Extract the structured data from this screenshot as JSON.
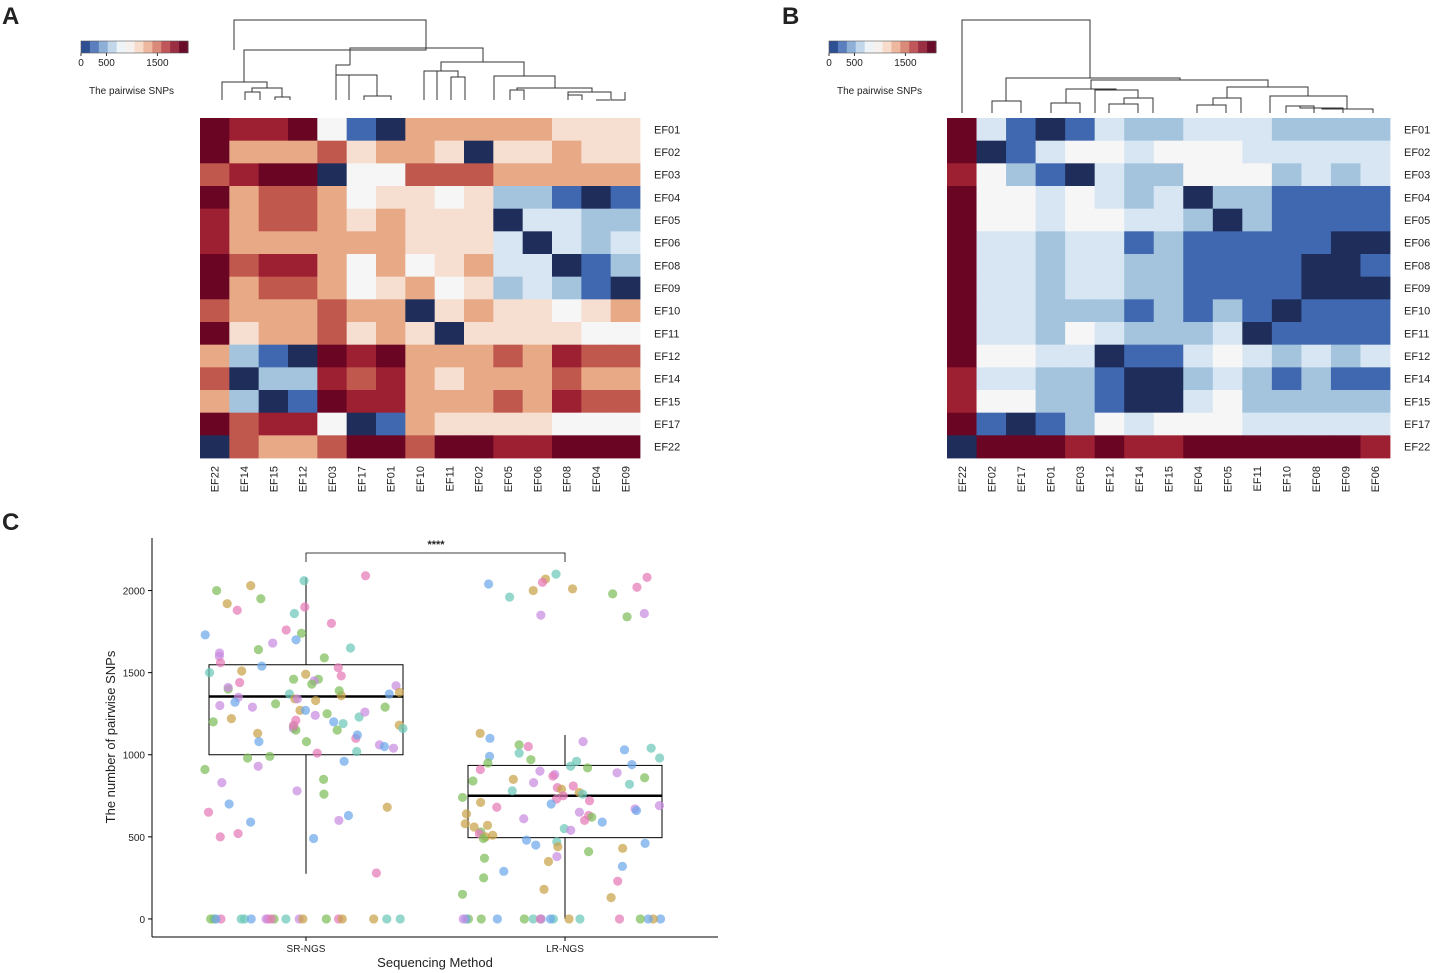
{
  "panels": {
    "a": "A",
    "b": "B",
    "c": "C"
  },
  "colorbar": {
    "title": "The pairwise SNPs",
    "ticks": [
      0,
      500,
      1500
    ],
    "range": [
      0,
      2100
    ],
    "colors": [
      "#2f4f93",
      "#5b7fbe",
      "#8fb0d6",
      "#c2d7ea",
      "#eef3f8",
      "#f6f1ee",
      "#f7dccc",
      "#eeb8a0",
      "#d98a78",
      "#c0575b",
      "#9a2f43",
      "#6b0d2a"
    ]
  },
  "colors": {
    "v0": "#1f2d5a",
    "v1": "#4068b0",
    "v2": "#a4c4de",
    "v3": "#d7e6f2",
    "v4": "#f6f6f6",
    "v5": "#f6dfd0",
    "v6": "#e8a987",
    "v7": "#c0584e",
    "v8": "#9d2032",
    "v9": "#6b0524"
  },
  "chart_data": [
    {
      "type": "heatmap",
      "panel": "A",
      "title": "",
      "columns": [
        "EF22",
        "EF14",
        "EF15",
        "EF12",
        "EF03",
        "EF17",
        "EF01",
        "EF10",
        "EF11",
        "EF02",
        "EF05",
        "EF06",
        "EF08",
        "EF04",
        "EF09"
      ],
      "rows": [
        "EF01",
        "EF02",
        "EF03",
        "EF04",
        "EF05",
        "EF06",
        "EF08",
        "EF09",
        "EF10",
        "EF11",
        "EF12",
        "EF14",
        "EF15",
        "EF17",
        "EF22"
      ],
      "value_scale": "0 = dark blue (few SNPs) ... 9 = dark red (many SNPs)",
      "matrix": [
        [
          9,
          8,
          8,
          9,
          4,
          1,
          0,
          6,
          6,
          6,
          6,
          6,
          5,
          5,
          5
        ],
        [
          9,
          6,
          6,
          6,
          7,
          5,
          6,
          6,
          5,
          0,
          5,
          5,
          6,
          5,
          5
        ],
        [
          7,
          8,
          9,
          9,
          0,
          4,
          4,
          7,
          7,
          7,
          6,
          6,
          6,
          6,
          6
        ],
        [
          9,
          6,
          7,
          7,
          6,
          4,
          5,
          5,
          4,
          5,
          2,
          2,
          1,
          0,
          1
        ],
        [
          8,
          6,
          7,
          7,
          6,
          5,
          6,
          5,
          5,
          5,
          0,
          3,
          3,
          2,
          2
        ],
        [
          8,
          6,
          6,
          6,
          6,
          6,
          6,
          5,
          5,
          5,
          3,
          0,
          3,
          2,
          3
        ],
        [
          9,
          7,
          8,
          8,
          6,
          4,
          6,
          4,
          5,
          6,
          3,
          3,
          0,
          1,
          2
        ],
        [
          9,
          6,
          7,
          7,
          6,
          4,
          5,
          6,
          4,
          5,
          2,
          3,
          2,
          1,
          0
        ],
        [
          7,
          6,
          6,
          6,
          7,
          6,
          6,
          0,
          5,
          6,
          5,
          5,
          4,
          5,
          6
        ],
        [
          9,
          5,
          6,
          6,
          7,
          5,
          6,
          5,
          0,
          5,
          5,
          5,
          5,
          4,
          4
        ],
        [
          6,
          2,
          1,
          0,
          9,
          8,
          9,
          6,
          6,
          6,
          7,
          6,
          8,
          7,
          7
        ],
        [
          7,
          0,
          2,
          2,
          8,
          7,
          8,
          6,
          5,
          6,
          6,
          6,
          7,
          6,
          6
        ],
        [
          6,
          2,
          0,
          1,
          9,
          8,
          8,
          6,
          6,
          6,
          7,
          6,
          8,
          7,
          7
        ],
        [
          9,
          7,
          8,
          8,
          4,
          0,
          1,
          6,
          5,
          5,
          5,
          5,
          4,
          4,
          4
        ],
        [
          0,
          7,
          6,
          6,
          7,
          9,
          9,
          7,
          9,
          9,
          8,
          8,
          9,
          9,
          9
        ]
      ]
    },
    {
      "type": "heatmap",
      "panel": "B",
      "title": "",
      "columns": [
        "EF22",
        "EF02",
        "EF17",
        "EF01",
        "EF03",
        "EF12",
        "EF14",
        "EF15",
        "EF04",
        "EF05",
        "EF11",
        "EF10",
        "EF08",
        "EF09",
        "EF06"
      ],
      "rows": [
        "EF01",
        "EF02",
        "EF03",
        "EF04",
        "EF05",
        "EF06",
        "EF08",
        "EF09",
        "EF10",
        "EF11",
        "EF12",
        "EF14",
        "EF15",
        "EF17",
        "EF22"
      ],
      "value_scale": "0 = dark blue (few SNPs) ... 9 = dark red (many SNPs)",
      "matrix": [
        [
          9,
          3,
          1,
          0,
          1,
          3,
          2,
          2,
          3,
          3,
          3,
          2,
          2,
          2,
          2
        ],
        [
          9,
          0,
          1,
          3,
          4,
          4,
          3,
          4,
          4,
          4,
          3,
          3,
          3,
          3,
          3
        ],
        [
          8,
          4,
          2,
          1,
          0,
          3,
          2,
          2,
          4,
          4,
          4,
          2,
          3,
          2,
          3
        ],
        [
          9,
          4,
          4,
          3,
          4,
          3,
          2,
          3,
          0,
          2,
          2,
          1,
          1,
          1,
          1
        ],
        [
          9,
          4,
          4,
          3,
          4,
          4,
          3,
          3,
          2,
          0,
          2,
          1,
          1,
          1,
          1
        ],
        [
          9,
          3,
          3,
          2,
          3,
          3,
          1,
          2,
          1,
          1,
          1,
          1,
          1,
          0,
          0
        ],
        [
          9,
          3,
          3,
          2,
          3,
          3,
          2,
          2,
          1,
          1,
          1,
          1,
          0,
          0,
          1
        ],
        [
          9,
          3,
          3,
          2,
          3,
          3,
          2,
          2,
          1,
          1,
          1,
          1,
          0,
          0,
          0
        ],
        [
          9,
          3,
          3,
          2,
          2,
          2,
          1,
          2,
          1,
          2,
          1,
          0,
          1,
          1,
          1
        ],
        [
          9,
          3,
          3,
          2,
          4,
          3,
          2,
          2,
          2,
          3,
          0,
          1,
          1,
          1,
          1
        ],
        [
          9,
          4,
          4,
          3,
          3,
          0,
          1,
          1,
          3,
          4,
          3,
          2,
          3,
          2,
          3
        ],
        [
          8,
          3,
          3,
          2,
          2,
          1,
          0,
          0,
          2,
          3,
          2,
          1,
          2,
          1,
          1
        ],
        [
          8,
          4,
          4,
          2,
          2,
          1,
          0,
          0,
          3,
          4,
          2,
          2,
          2,
          2,
          2
        ],
        [
          9,
          1,
          0,
          1,
          2,
          4,
          3,
          4,
          4,
          4,
          3,
          3,
          3,
          3,
          3
        ],
        [
          0,
          9,
          9,
          9,
          8,
          9,
          8,
          8,
          9,
          9,
          9,
          9,
          9,
          9,
          8
        ]
      ]
    },
    {
      "type": "box+scatter",
      "panel": "C",
      "title": "",
      "xlabel": "Sequencing Method",
      "ylabel": "The number of pairwise SNPs",
      "categories": [
        "SR-NGS",
        "LR-NGS"
      ],
      "ylim": [
        -110,
        2320
      ],
      "yticks": [
        0,
        500,
        1000,
        1500,
        2000
      ],
      "significance": "****",
      "boxes": [
        {
          "q1": 1000,
          "median": 1355,
          "q3": 1548,
          "whisker_low": 275,
          "whisker_high": 2080
        },
        {
          "q1": 495,
          "median": 750,
          "q3": 935,
          "whisker_low": 0,
          "whisker_high": 1120
        }
      ],
      "point_colors": [
        "#e67ab8",
        "#c9a24a",
        "#7fbe5a",
        "#6cc7b8",
        "#6ea8ea",
        "#c98ae0"
      ],
      "points": [
        [
          2060,
          1920,
          1860,
          1620,
          1590,
          1540,
          1530,
          1490,
          1480,
          1460,
          1440,
          1420,
          1400,
          1380,
          1370,
          1360,
          1350,
          1340,
          1330,
          1320,
          1310,
          1300,
          1290,
          1270,
          1250,
          1230,
          1220,
          1210,
          1200,
          1190,
          1180,
          1170,
          1160,
          1150,
          1130,
          1100,
          1080,
          1060,
          1040,
          1020,
          1010,
          990,
          980,
          960,
          930,
          910,
          850,
          830,
          780,
          760,
          700,
          680,
          650,
          630,
          600,
          590,
          520,
          500,
          490,
          280,
          1900,
          1950,
          2000,
          2030,
          2090,
          1880,
          1800,
          1760,
          1740,
          1730,
          1700,
          1680,
          1650,
          1640,
          1600,
          1560,
          1510,
          1500,
          1460,
          1450,
          1430,
          1410,
          1390,
          1370,
          1340,
          1290,
          1270,
          1260,
          1240,
          1200,
          1180,
          1160,
          1150,
          1120,
          1080,
          1050,
          0,
          0,
          0,
          0,
          0,
          0,
          0,
          0,
          0,
          0,
          0,
          0,
          0,
          0,
          0,
          0,
          0,
          0,
          0,
          0
        ],
        [
          2100,
          2080,
          2070,
          2050,
          2040,
          2020,
          2010,
          2000,
          1980,
          1960,
          1860,
          1850,
          1840,
          1130,
          1100,
          1080,
          1060,
          1050,
          1040,
          1030,
          1010,
          990,
          980,
          970,
          960,
          950,
          940,
          930,
          920,
          910,
          900,
          890,
          880,
          870,
          860,
          850,
          840,
          830,
          820,
          810,
          800,
          790,
          780,
          770,
          760,
          750,
          740,
          730,
          720,
          710,
          700,
          690,
          680,
          670,
          660,
          650,
          640,
          630,
          620,
          610,
          600,
          590,
          580,
          570,
          560,
          550,
          540,
          530,
          520,
          510,
          500,
          490,
          480,
          470,
          460,
          450,
          440,
          430,
          410,
          380,
          370,
          350,
          320,
          290,
          250,
          230,
          180,
          150,
          130,
          0,
          0,
          0,
          0,
          0,
          0,
          0,
          0,
          0,
          0,
          0,
          0,
          0,
          0,
          0,
          0,
          0,
          0
        ]
      ]
    }
  ]
}
